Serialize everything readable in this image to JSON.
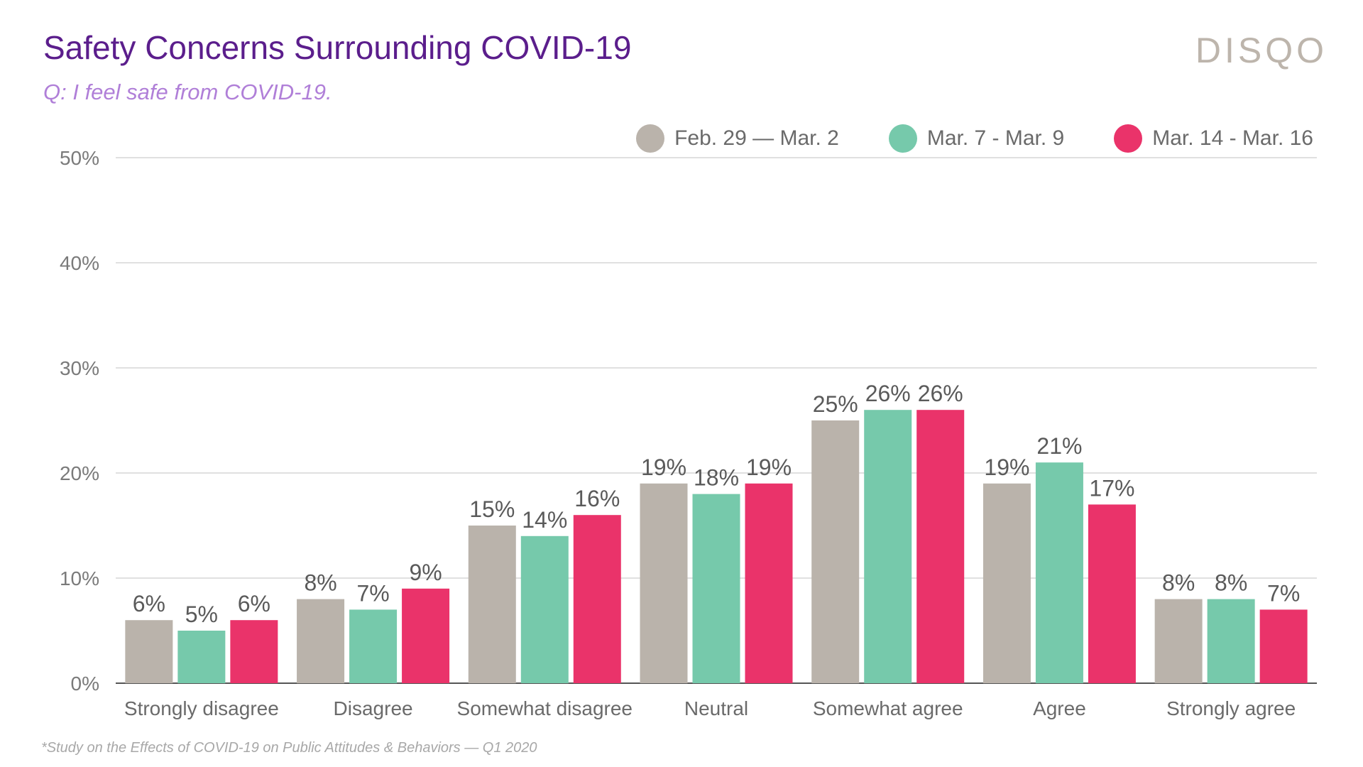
{
  "header": {
    "title": "Safety Concerns Surrounding COVID-19",
    "subtitle": "Q: I feel safe from COVID-19.",
    "logo": "DISQO"
  },
  "footnote": "*Study on the Effects of COVID-19 on Public Attitudes & Behaviors — Q1 2020",
  "chart_data": {
    "type": "bar",
    "title": "Safety Concerns Surrounding COVID-19",
    "subtitle": "Q: I feel safe from COVID-19.",
    "xlabel": "",
    "ylabel": "",
    "ylim": [
      0,
      50
    ],
    "yticks": [
      0,
      10,
      20,
      30,
      40,
      50
    ],
    "ytick_labels": [
      "0%",
      "10%",
      "20%",
      "30%",
      "40%",
      "50%"
    ],
    "grid": true,
    "legend_position": "top-right",
    "categories": [
      "Strongly disagree",
      "Disagree",
      "Somewhat disagree",
      "Neutral",
      "Somewhat agree",
      "Agree",
      "Strongly agree"
    ],
    "series": [
      {
        "name": "Feb. 29 — Mar. 2",
        "color": "#bab3ab",
        "values": [
          6,
          8,
          15,
          19,
          25,
          19,
          8
        ]
      },
      {
        "name": "Mar. 7 - Mar. 9",
        "color": "#76c9ab",
        "values": [
          5,
          7,
          14,
          18,
          26,
          21,
          8
        ]
      },
      {
        "name": "Mar. 14 - Mar. 16",
        "color": "#ea336a",
        "values": [
          6,
          9,
          16,
          19,
          26,
          17,
          7
        ]
      }
    ]
  }
}
